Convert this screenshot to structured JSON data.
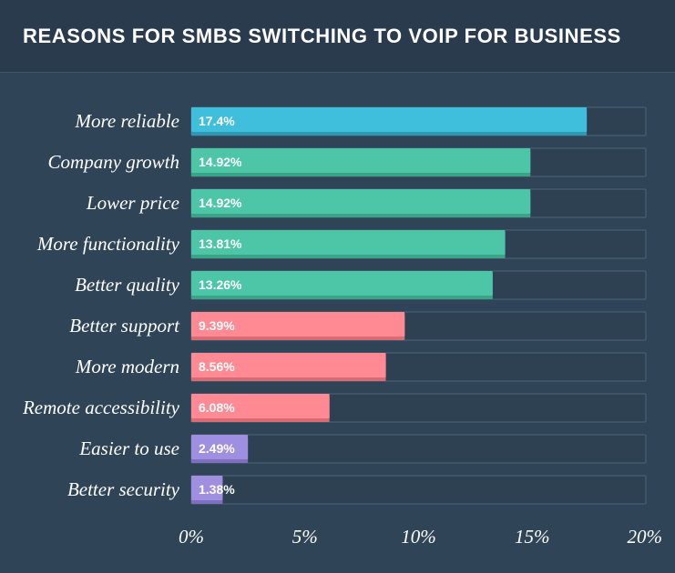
{
  "title": "REASONS FOR SMBS SWITCHING TO VOIP FOR BUSINESS",
  "chart_data": {
    "type": "bar",
    "orientation": "horizontal",
    "title": "REASONS FOR SMBS SWITCHING TO VOIP FOR BUSINESS",
    "categories": [
      "More reliable",
      "Company growth",
      "Lower price",
      "More functionality",
      "Better quality",
      "Better support",
      "More modern",
      "Remote accessibility",
      "Easier to use",
      "Better security"
    ],
    "values": [
      17.4,
      14.92,
      14.92,
      13.81,
      13.26,
      9.39,
      8.56,
      6.08,
      2.49,
      1.38
    ],
    "value_labels": [
      "17.4%",
      "14.92%",
      "14.92%",
      "13.81%",
      "13.26%",
      "9.39%",
      "8.56%",
      "6.08%",
      "2.49%",
      "1.38%"
    ],
    "bar_colors": [
      "#3fbfdc",
      "#4cc6a6",
      "#4cc6a6",
      "#4cc6a6",
      "#4cc6a6",
      "#ff8a93",
      "#ff8a93",
      "#ff8a93",
      "#9f8fe0",
      "#9f8fe0"
    ],
    "bar_shadow_colors": [
      "#2f99b3",
      "#3aa487",
      "#3aa487",
      "#3aa487",
      "#3aa487",
      "#db6a73",
      "#db6a73",
      "#db6a73",
      "#7f6fc0",
      "#7f6fc0"
    ],
    "x_ticks": [
      0,
      5,
      10,
      15,
      20
    ],
    "x_tick_labels": [
      "0%",
      "5%",
      "10%",
      "15%",
      "20%"
    ],
    "xlim": [
      0,
      20
    ],
    "xlabel": "",
    "ylabel": "",
    "grid": false,
    "track_color": "#2d4153",
    "track_border_color": "#4e6478"
  }
}
